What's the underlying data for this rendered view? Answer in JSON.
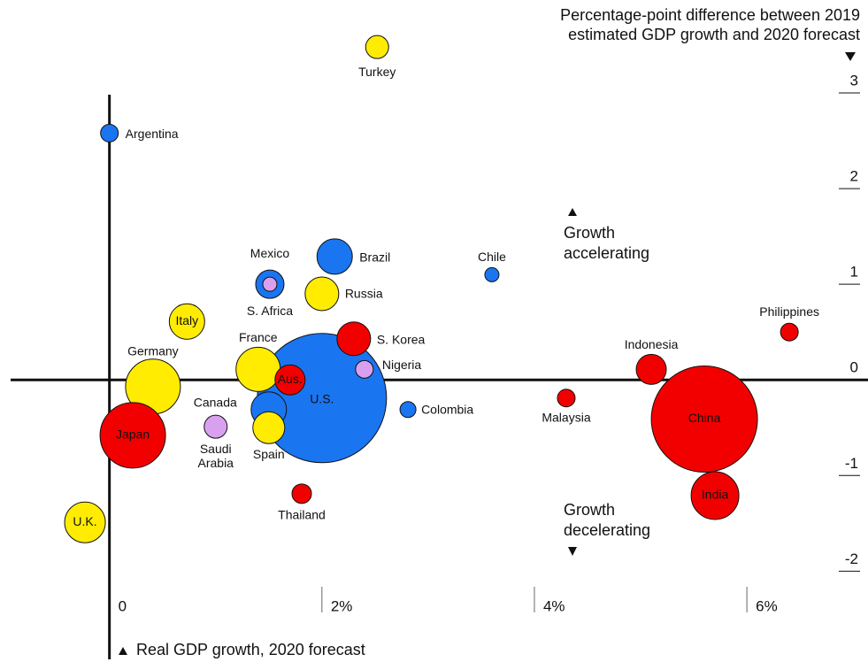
{
  "chart_data": {
    "type": "scatter",
    "ylabel": [
      "Percentage-point difference between 2019",
      "estimated GDP growth and 2020 forecast"
    ],
    "xlabel": "Real GDP growth, 2020 forecast",
    "annotations": [
      [
        "Growth",
        "accelerating"
      ],
      [
        "Growth",
        "decelerating"
      ]
    ],
    "xlim": [
      -0.93,
      7.14
    ],
    "ylim": [
      -2.95,
      3.9
    ],
    "xticks": [
      0,
      {
        "value": 2,
        "label": "2%"
      },
      {
        "value": 4,
        "label": "4%"
      },
      {
        "value": 6,
        "label": "6%"
      }
    ],
    "yticks": [
      3,
      2,
      1,
      0,
      -1,
      -2
    ],
    "points": [
      {
        "name": "U.S.",
        "x": 2.0,
        "y": -0.19,
        "size": 73,
        "color": "#1a75f0"
      },
      {
        "name": "China",
        "x": 5.6,
        "y": -0.41,
        "size": 60,
        "color": "#f20000"
      },
      {
        "name": "Germany",
        "x": 0.41,
        "y": -0.07,
        "size": 31,
        "color": "#ffec00"
      },
      {
        "name": "Japan",
        "x": 0.22,
        "y": -0.58,
        "size": 37,
        "color": "#f20000"
      },
      {
        "name": "India",
        "x": 5.7,
        "y": -1.21,
        "size": 27,
        "color": "#f20000"
      },
      {
        "name": "France",
        "x": 1.4,
        "y": 0.11,
        "size": 25,
        "color": "#ffec00"
      },
      {
        "name": "U.K.",
        "x": -0.23,
        "y": -1.49,
        "size": 23,
        "color": "#ffec00"
      },
      {
        "name": "Brazil",
        "x": 2.12,
        "y": 1.29,
        "size": 20,
        "color": "#1a75f0"
      },
      {
        "name": "Italy",
        "x": 0.73,
        "y": 0.61,
        "size": 20,
        "color": "#ffec00"
      },
      {
        "name": "Canada",
        "x": 1.5,
        "y": -0.31,
        "size": 20,
        "color": "#1a75f0"
      },
      {
        "name": "Russia",
        "x": 2.0,
        "y": 0.9,
        "size": 19,
        "color": "#ffec00"
      },
      {
        "name": "S. Korea",
        "x": 2.3,
        "y": 0.43,
        "size": 19,
        "color": "#f20000"
      },
      {
        "name": "Spain",
        "x": 1.5,
        "y": -0.5,
        "size": 18,
        "color": "#ffec00"
      },
      {
        "name": "Aus.",
        "x": 1.7,
        "y": 0,
        "size": 17,
        "color": "#f20000"
      },
      {
        "name": "Indonesia",
        "x": 5.1,
        "y": 0.11,
        "size": 17,
        "color": "#f20000"
      },
      {
        "name": "Mexico",
        "x": 1.51,
        "y": 1.0,
        "size": 16,
        "color": "#1a75f0"
      },
      {
        "name": "S. Africa",
        "x": 1.51,
        "y": 1.0,
        "size": 8,
        "color": "#d9a0f0"
      },
      {
        "name": "Turkey",
        "x": 2.52,
        "y": 3.48,
        "size": 13,
        "color": "#ffec00"
      },
      {
        "name": "Saudi Arabia",
        "x": 1.0,
        "y": -0.49,
        "size": 13,
        "color": "#d9a0f0"
      },
      {
        "name": "Thailand",
        "x": 1.81,
        "y": -1.19,
        "size": 11,
        "color": "#f20000"
      },
      {
        "name": "Argentina",
        "x": 0,
        "y": 2.58,
        "size": 10,
        "color": "#1a75f0"
      },
      {
        "name": "Nigeria",
        "x": 2.4,
        "y": 0.11,
        "size": 10,
        "color": "#d9a0f0"
      },
      {
        "name": "Philippines",
        "x": 6.4,
        "y": 0.5,
        "size": 10,
        "color": "#f20000"
      },
      {
        "name": "Malaysia",
        "x": 4.3,
        "y": -0.19,
        "size": 10,
        "color": "#f20000"
      },
      {
        "name": "Colombia",
        "x": 2.81,
        "y": -0.31,
        "size": 9,
        "color": "#1a75f0"
      },
      {
        "name": "Chile",
        "x": 3.6,
        "y": 1.1,
        "size": 8,
        "color": "#1a75f0"
      }
    ]
  }
}
